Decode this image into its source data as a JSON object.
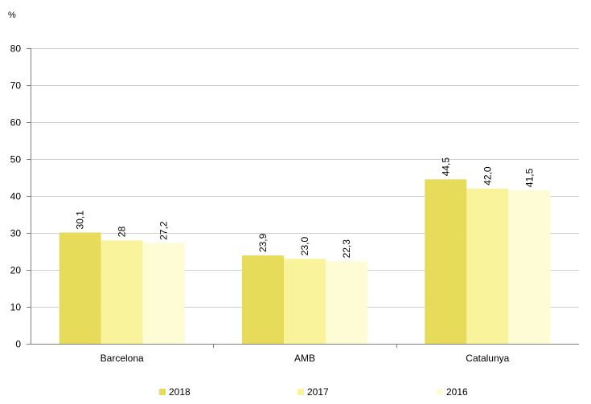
{
  "chart_data": {
    "type": "bar",
    "title": "",
    "xlabel": "",
    "ylabel": "%",
    "ylim": [
      0,
      80
    ],
    "yticks": [
      0,
      10,
      20,
      30,
      40,
      50,
      60,
      70,
      80
    ],
    "grid": true,
    "legend_position": "bottom",
    "categories": [
      "Barcelona",
      "AMB",
      "Catalunya"
    ],
    "series": [
      {
        "name": "2018",
        "color": "#e6dc5a",
        "values": [
          30.1,
          23.9,
          44.5
        ],
        "labels": [
          "30,1",
          "23,9",
          "44,5"
        ]
      },
      {
        "name": "2017",
        "color": "#f9f49c",
        "values": [
          28,
          23.0,
          42.0
        ],
        "labels": [
          "28",
          "23,0",
          "42,0"
        ]
      },
      {
        "name": "2016",
        "color": "#fdfcd4",
        "values": [
          27.2,
          22.3,
          41.5
        ],
        "labels": [
          "27,2",
          "22,3",
          "41,5"
        ]
      }
    ]
  }
}
